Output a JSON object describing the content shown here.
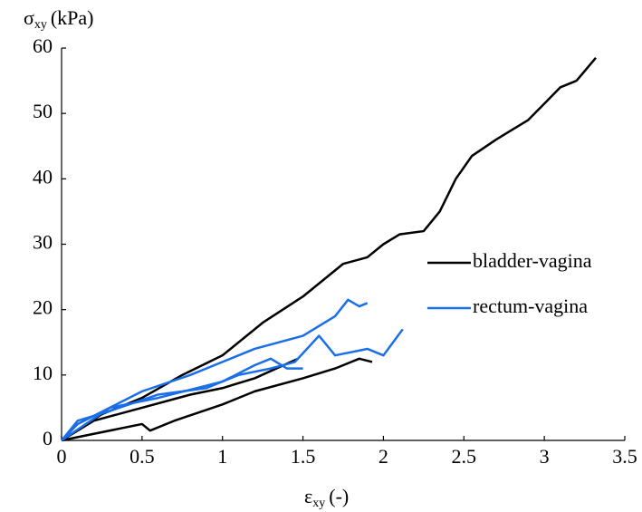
{
  "chart_data": {
    "type": "line",
    "ylabel": {
      "symbol": "σ",
      "subscript": "xy",
      "unit": "(kPa)"
    },
    "xlabel": {
      "symbol": "ε",
      "subscript": "xy",
      "unit": "(-)"
    },
    "xlim": [
      0,
      3.5
    ],
    "xticks": [
      0,
      0.5,
      1,
      1.5,
      2,
      2.5,
      3,
      3.5
    ],
    "ylim": [
      0,
      60
    ],
    "yticks": [
      0,
      10,
      20,
      30,
      40,
      50,
      60
    ],
    "grid": false,
    "legend": "right",
    "series": [
      {
        "name": "bladder-vagina",
        "color": "#000000",
        "curves": [
          {
            "x": [
              0,
              0.25,
              0.5,
              0.75,
              1,
              1.25,
              1.5,
              1.75,
              1.9,
              2,
              2.1,
              2.25,
              2.35,
              2.45,
              2.55,
              2.7,
              2.8,
              2.9,
              3,
              3.1,
              3.2,
              3.32
            ],
            "values": [
              0,
              4,
              6.5,
              10,
              13,
              18,
              22,
              27,
              28,
              30,
              31.5,
              32,
              35,
              40,
              43.5,
              46,
              47.5,
              49,
              51.5,
              54,
              55,
              58.5
            ]
          },
          {
            "x": [
              0,
              0.2,
              0.5,
              0.55,
              0.7,
              1,
              1.2,
              1.5,
              1.7,
              1.85,
              1.93
            ],
            "values": [
              0,
              1,
              2.5,
              1.5,
              3,
              5.5,
              7.5,
              9.5,
              11,
              12.5,
              12
            ]
          },
          {
            "x": [
              0,
              0.2,
              0.5,
              0.8,
              1,
              1.2,
              1.47
            ],
            "values": [
              0,
              3,
              5,
              7,
              8,
              9.5,
              12.5
            ]
          }
        ]
      },
      {
        "name": "rectum-vagina",
        "color": "#1a6fe8",
        "curves": [
          {
            "x": [
              0,
              0.1,
              0.3,
              0.5,
              0.8,
              1,
              1.2,
              1.5,
              1.7,
              1.78,
              1.85,
              1.9
            ],
            "values": [
              0,
              2.5,
              5,
              7.5,
              10,
              12,
              14,
              16,
              19,
              21.5,
              20.5,
              21
            ]
          },
          {
            "x": [
              0,
              0.1,
              0.3,
              0.6,
              0.9,
              1.1,
              1.3,
              1.45,
              1.6,
              1.7,
              1.9,
              2,
              2.12
            ],
            "values": [
              0,
              3,
              4.5,
              7,
              8,
              10,
              11,
              12,
              16,
              13,
              14,
              13,
              17
            ]
          },
          {
            "x": [
              0,
              0.3,
              0.6,
              1,
              1.2,
              1.3,
              1.4,
              1.5
            ],
            "values": [
              0,
              5,
              6.5,
              9,
              11.5,
              12.5,
              11,
              11
            ]
          }
        ]
      }
    ]
  }
}
